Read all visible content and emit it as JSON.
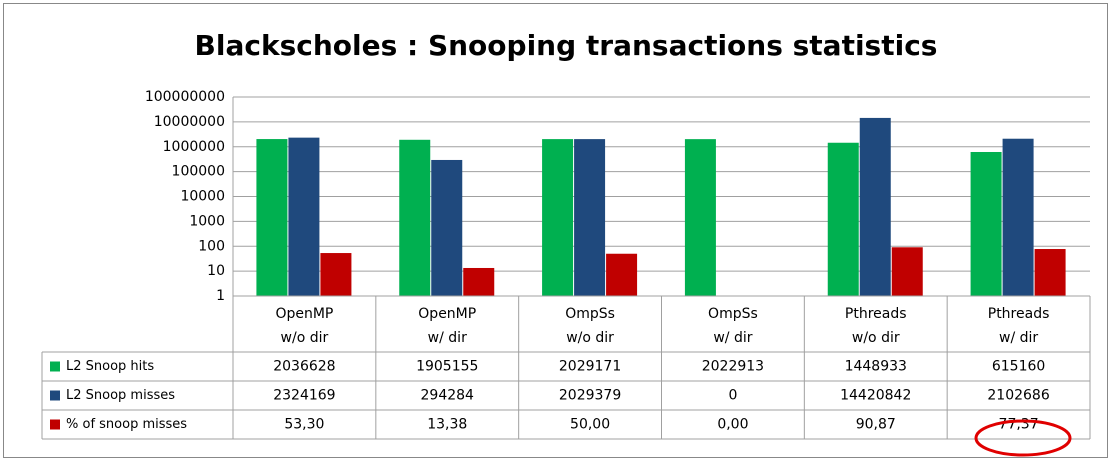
{
  "chart_data": {
    "type": "bar",
    "title": "Blackscholes : Snooping transactions statistics",
    "categories": [
      [
        "OpenMP",
        "w/o dir"
      ],
      [
        "OpenMP",
        "w/ dir"
      ],
      [
        "OmpSs",
        "w/o dir"
      ],
      [
        "OmpSs",
        "w/ dir"
      ],
      [
        "Pthreads",
        "w/o dir"
      ],
      [
        "Pthreads",
        "w/ dir"
      ]
    ],
    "log_scale": true,
    "grid": true,
    "ylim": [
      1,
      100000000
    ],
    "yticks": [
      1,
      10,
      100,
      1000,
      10000,
      100000,
      1000000,
      10000000,
      100000000
    ],
    "series": [
      {
        "name": "L2 Snoop hits",
        "color": "#00b050",
        "values": [
          2036628,
          1905155,
          2029171,
          2022913,
          1448933,
          615160
        ]
      },
      {
        "name": "L2 Snoop misses",
        "color": "#1f497d",
        "values": [
          2324169,
          294284,
          2029379,
          0,
          14420842,
          2102686
        ]
      },
      {
        "name": "% of snoop misses",
        "color": "#c00000",
        "values": [
          53.3,
          13.38,
          50,
          0,
          90.87,
          77.37
        ],
        "value_labels": [
          "53,30",
          "13,38",
          "50,00",
          "0,00",
          "90,87",
          "77,37"
        ]
      }
    ]
  }
}
